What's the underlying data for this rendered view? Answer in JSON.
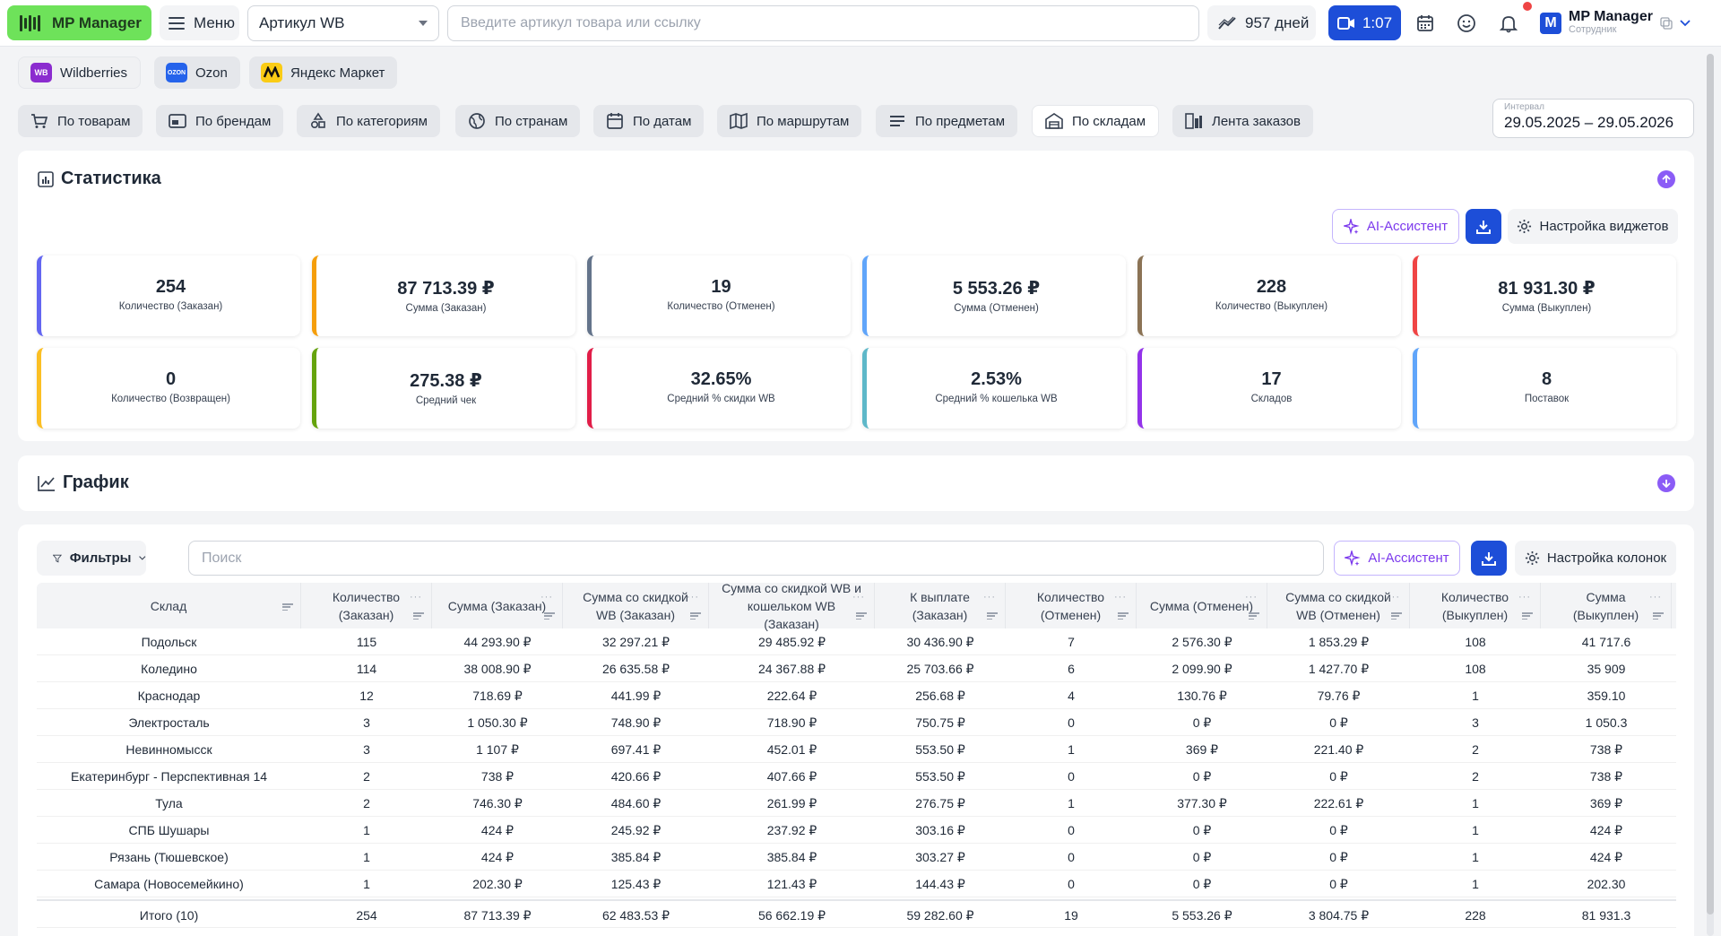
{
  "header": {
    "brand": "MP Manager",
    "menu_label": "Меню",
    "article_select": "Артикул WB",
    "search_placeholder": "Введите артикул товара или ссылку",
    "days_label": "957 дней",
    "video_label": "1:07",
    "profile_name": "MP Manager",
    "profile_role": "Сотрудник",
    "profile_initial": "M"
  },
  "marketplaces": [
    {
      "label": "Wildberries",
      "icon": "wb-icon",
      "badge": "WB",
      "color": "#8b2ccf"
    },
    {
      "label": "Ozon",
      "icon": "ozon-icon",
      "badge": "OZON",
      "color": "#2563eb"
    },
    {
      "label": "Яндекс Маркет",
      "icon": "yandex-market-icon",
      "badge": "",
      "color": "#facc15"
    }
  ],
  "report_tabs": [
    {
      "label": "По товарам",
      "icon": "cart-icon"
    },
    {
      "label": "По брендам",
      "icon": "brand-icon"
    },
    {
      "label": "По категориям",
      "icon": "categories-icon"
    },
    {
      "label": "По странам",
      "icon": "globe-icon"
    },
    {
      "label": "По датам",
      "icon": "calendar-icon"
    },
    {
      "label": "По маршрутам",
      "icon": "map-icon"
    },
    {
      "label": "По предметам",
      "icon": "list-icon"
    },
    {
      "label": "По складам",
      "icon": "warehouse-icon"
    },
    {
      "label": "Лента заказов",
      "icon": "feed-icon"
    }
  ],
  "interval": {
    "label": "Интервал",
    "value": "29.05.2025 – 29.05.2026"
  },
  "stats_section": {
    "title": "Статистика",
    "ai_label": "AI-Ассистент",
    "settings_label": "Настройка виджетов",
    "cards": [
      {
        "value": "254",
        "label": "Количество (Заказан)",
        "color": "#6366f1"
      },
      {
        "value": "87 713.39 ₽",
        "label": "Сумма (Заказан)",
        "color": "#f59e0b"
      },
      {
        "value": "19",
        "label": "Количество (Отменен)",
        "color": "#64748b"
      },
      {
        "value": "5 553.26 ₽",
        "label": "Сумма (Отменен)",
        "color": "#60a5fa"
      },
      {
        "value": "228",
        "label": "Количество (Выкуплен)",
        "color": "#8b7355"
      },
      {
        "value": "81 931.30 ₽",
        "label": "Сумма (Выкуплен)",
        "color": "#ef4444"
      },
      {
        "value": "0",
        "label": "Количество (Возвращен)",
        "color": "#fbbf24"
      },
      {
        "value": "275.38 ₽",
        "label": "Средний чек",
        "color": "#65a30d"
      },
      {
        "value": "32.65%",
        "label": "Средний % скидки WB",
        "color": "#e11d48"
      },
      {
        "value": "2.53%",
        "label": "Средний % кошелька WB",
        "color": "#5eb8c9"
      },
      {
        "value": "17",
        "label": "Складов",
        "color": "#9333ea"
      },
      {
        "value": "8",
        "label": "Поставок",
        "color": "#60a5fa"
      }
    ]
  },
  "chart_section": {
    "title": "График"
  },
  "table_section": {
    "filters_label": "Фильтры",
    "search_placeholder": "Поиск",
    "ai_label": "AI-Ассистент",
    "settings_label": "Настройка колонок",
    "columns": [
      "Склад",
      "Количество (Заказан)",
      "Сумма (Заказан)",
      "Сумма со скидкой WB (Заказан)",
      "Сумма со скидкой WB и кошельком WB (Заказан)",
      "К выплате (Заказан)",
      "Количество (Отменен)",
      "Сумма (Отменен)",
      "Сумма со скидкой WB (Отменен)",
      "Количество (Выкуплен)",
      "Сумма (Выкуплен)"
    ],
    "rows": [
      [
        "Подольск",
        "115",
        "44 293.90 ₽",
        "32 297.21 ₽",
        "29 485.92 ₽",
        "30 436.90 ₽",
        "7",
        "2 576.30 ₽",
        "1 853.29 ₽",
        "108",
        "41 717.6"
      ],
      [
        "Коледино",
        "114",
        "38 008.90 ₽",
        "26 635.58 ₽",
        "24 367.88 ₽",
        "25 703.66 ₽",
        "6",
        "2 099.90 ₽",
        "1 427.70 ₽",
        "108",
        "35 909"
      ],
      [
        "Краснодар",
        "12",
        "718.69 ₽",
        "441.99 ₽",
        "222.64 ₽",
        "256.68 ₽",
        "4",
        "130.76 ₽",
        "79.76 ₽",
        "1",
        "359.10"
      ],
      [
        "Электросталь",
        "3",
        "1 050.30 ₽",
        "748.90 ₽",
        "718.90 ₽",
        "750.75 ₽",
        "0",
        "0 ₽",
        "0 ₽",
        "3",
        "1 050.3"
      ],
      [
        "Невинномысск",
        "3",
        "1 107 ₽",
        "697.41 ₽",
        "452.01 ₽",
        "553.50 ₽",
        "1",
        "369 ₽",
        "221.40 ₽",
        "2",
        "738 ₽"
      ],
      [
        "Екатеринбург - Перспективная 14",
        "2",
        "738 ₽",
        "420.66 ₽",
        "407.66 ₽",
        "553.50 ₽",
        "0",
        "0 ₽",
        "0 ₽",
        "2",
        "738 ₽"
      ],
      [
        "Тула",
        "2",
        "746.30 ₽",
        "484.60 ₽",
        "261.99 ₽",
        "276.75 ₽",
        "1",
        "377.30 ₽",
        "222.61 ₽",
        "1",
        "369 ₽"
      ],
      [
        "СПБ Шушары",
        "1",
        "424 ₽",
        "245.92 ₽",
        "237.92 ₽",
        "303.16 ₽",
        "0",
        "0 ₽",
        "0 ₽",
        "1",
        "424 ₽"
      ],
      [
        "Рязань (Тюшевское)",
        "1",
        "424 ₽",
        "385.84 ₽",
        "385.84 ₽",
        "303.27 ₽",
        "0",
        "0 ₽",
        "0 ₽",
        "1",
        "424 ₽"
      ],
      [
        "Самара (Новосемейкино)",
        "1",
        "202.30 ₽",
        "125.43 ₽",
        "121.43 ₽",
        "144.43 ₽",
        "0",
        "0 ₽",
        "0 ₽",
        "1",
        "202.30"
      ]
    ],
    "total": [
      "Итого (10)",
      "254",
      "87 713.39 ₽",
      "62 483.53 ₽",
      "56 662.19 ₽",
      "59 282.60 ₽",
      "19",
      "5 553.26 ₽",
      "3 804.75 ₽",
      "228",
      "81 931.3"
    ]
  }
}
